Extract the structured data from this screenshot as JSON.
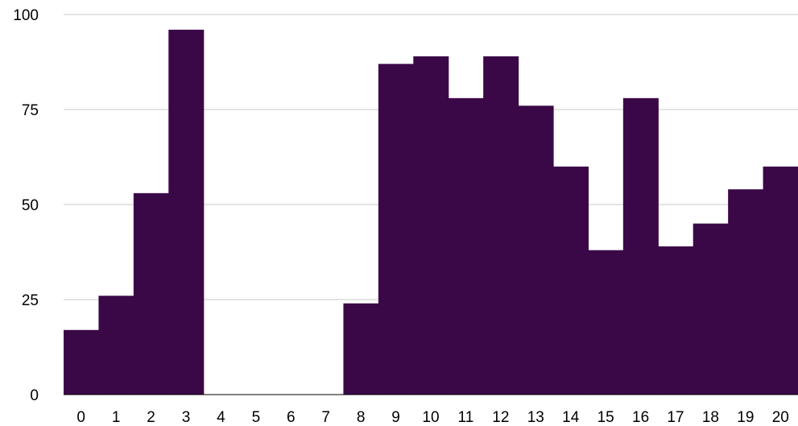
{
  "chart_data": {
    "type": "area",
    "subtype": "step",
    "title": "",
    "xlabel": "",
    "ylabel": "",
    "x": [
      0,
      1,
      2,
      3,
      4,
      5,
      6,
      7,
      8,
      9,
      10,
      11,
      12,
      13,
      14,
      15,
      16,
      17,
      18,
      19,
      20
    ],
    "categories": [
      "0",
      "1",
      "2",
      "3",
      "4",
      "5",
      "6",
      "7",
      "8",
      "9",
      "10",
      "11",
      "12",
      "13",
      "14",
      "15",
      "16",
      "17",
      "18",
      "19",
      "20"
    ],
    "series": [
      {
        "values": [
          17,
          26,
          53,
          96,
          0,
          0,
          0,
          0,
          24,
          87,
          89,
          78,
          89,
          76,
          60,
          38,
          78,
          39,
          45,
          54,
          60
        ],
        "color": "#3a0847"
      }
    ],
    "ylim": [
      0,
      100
    ],
    "yticks": [
      0,
      25,
      50,
      75,
      100
    ],
    "ytick_labels": [
      "0",
      "25",
      "50",
      "75",
      "100"
    ],
    "grid": true,
    "legend": "none"
  }
}
